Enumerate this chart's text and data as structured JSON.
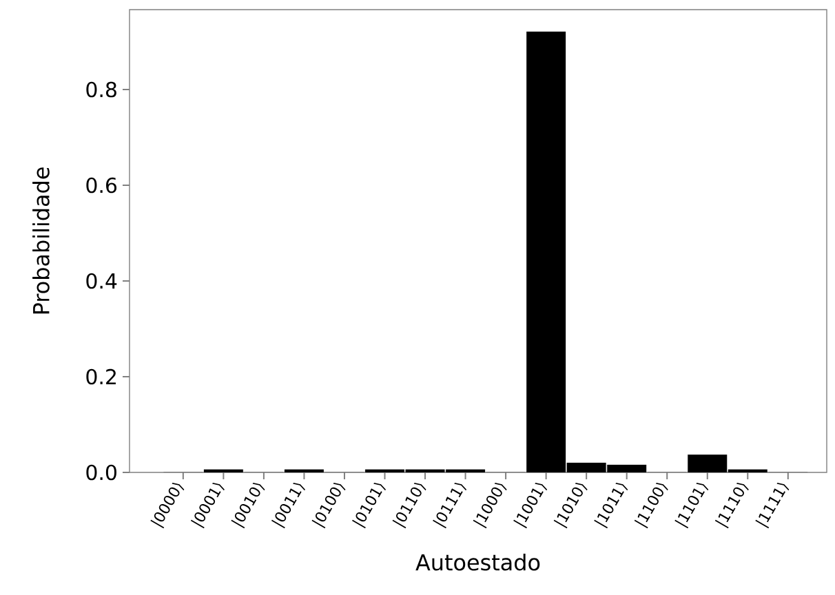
{
  "chart_data": {
    "type": "bar",
    "xlabel": "Autoestado",
    "ylabel": "Probabilidade",
    "categories": [
      "|0000⟩",
      "|0001⟩",
      "|0010⟩",
      "|0011⟩",
      "|0100⟩",
      "|0101⟩",
      "|0110⟩",
      "|0111⟩",
      "|1000⟩",
      "|1001⟩",
      "|1010⟩",
      "|1011⟩",
      "|1100⟩",
      "|1101⟩",
      "|1110⟩",
      "|1111⟩"
    ],
    "values": [
      0,
      0.006,
      0,
      0.006,
      0,
      0.006,
      0.006,
      0.006,
      0,
      0.921,
      0.02,
      0.016,
      0,
      0.037,
      0.006,
      0
    ],
    "color": "#000000",
    "ylim": [
      0,
      0.967
    ],
    "yticks": [
      {
        "value": 0,
        "label": "0.0"
      },
      {
        "value": 0.2,
        "label": "0.2"
      },
      {
        "value": 0.4,
        "label": "0.4"
      },
      {
        "value": 0.6,
        "label": "0.6"
      },
      {
        "value": 0.8,
        "label": "0.8"
      }
    ],
    "grid": false
  }
}
